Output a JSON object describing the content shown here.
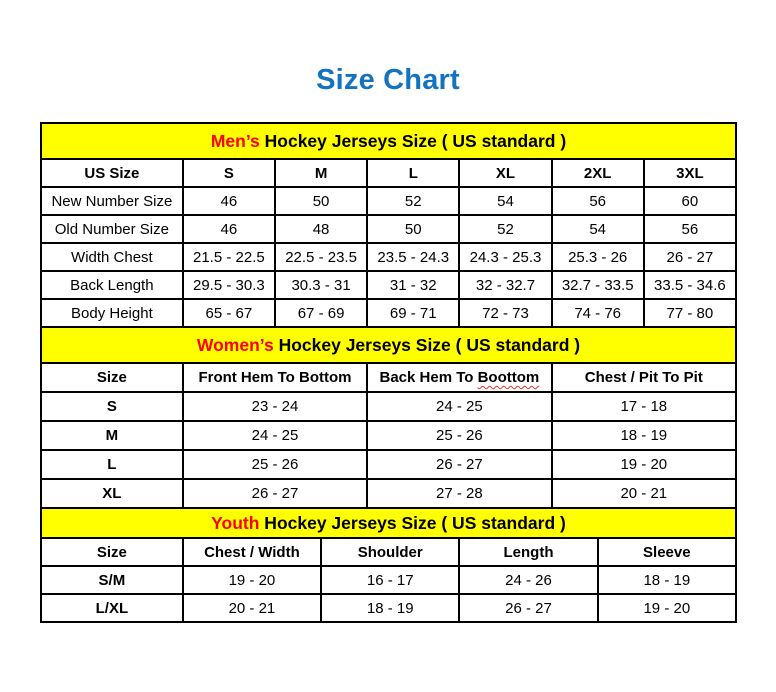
{
  "page": {
    "title": "Size Chart"
  },
  "colors": {
    "title_blue": "#1473c0",
    "section_accent_red": "#ff0000",
    "band_yellow": "#ffff00",
    "border_black": "#000000",
    "squiggle_red": "#e0342b"
  },
  "tables": [
    {
      "id": "mens",
      "section_accent": "Men’s",
      "section_rest": " Hockey Jerseys Size ( US standard )",
      "header": [
        "US Size",
        "S",
        "M",
        "L",
        "XL",
        "2XL",
        "3XL"
      ],
      "rows": [
        [
          "New Number Size",
          "46",
          "50",
          "52",
          "54",
          "56",
          "60"
        ],
        [
          "Old Number Size",
          "46",
          "48",
          "50",
          "52",
          "54",
          "56"
        ],
        [
          "Width Chest",
          "21.5 - 22.5",
          "22.5 - 23.5",
          "23.5 - 24.3",
          "24.3 - 25.3",
          "25.3 - 26",
          "26 - 27"
        ],
        [
          "Back Length",
          "29.5 - 30.3",
          "30.3 - 31",
          "31 - 32",
          "32 - 32.7",
          "32.7 - 33.5",
          "33.5 - 34.6"
        ],
        [
          "Body Height",
          "65 - 67",
          "67 - 69",
          "69 - 71",
          "72 - 73",
          "74 - 76",
          "77 - 80"
        ]
      ]
    },
    {
      "id": "womens",
      "section_accent": "Women’s",
      "section_rest": " Hockey Jerseys Size ( US standard )",
      "header": [
        "Size",
        "Front Hem To Bottom",
        "Back Hem To Boottom",
        "Chest / Pit To Pit"
      ],
      "squiggle": {
        "column": 2,
        "word": "Boottom"
      },
      "rows": [
        [
          "S",
          "23 - 24",
          "24 - 25",
          "17 - 18"
        ],
        [
          "M",
          "24 - 25",
          "25 - 26",
          "18 - 19"
        ],
        [
          "L",
          "25 - 26",
          "26 - 27",
          "19 - 20"
        ],
        [
          "XL",
          "26 - 27",
          "27 - 28",
          "20 - 21"
        ]
      ]
    },
    {
      "id": "youth",
      "section_accent": "Youth",
      "section_rest": " Hockey Jerseys Size ( US standard )",
      "header": [
        "Size",
        "Chest / Width",
        "Shoulder",
        "Length",
        "Sleeve"
      ],
      "rows": [
        [
          "S/M",
          "19 - 20",
          "16 - 17",
          "24 - 26",
          "18 - 19"
        ],
        [
          "L/XL",
          "20 - 21",
          "18 - 19",
          "26 - 27",
          "19 - 20"
        ]
      ]
    }
  ]
}
